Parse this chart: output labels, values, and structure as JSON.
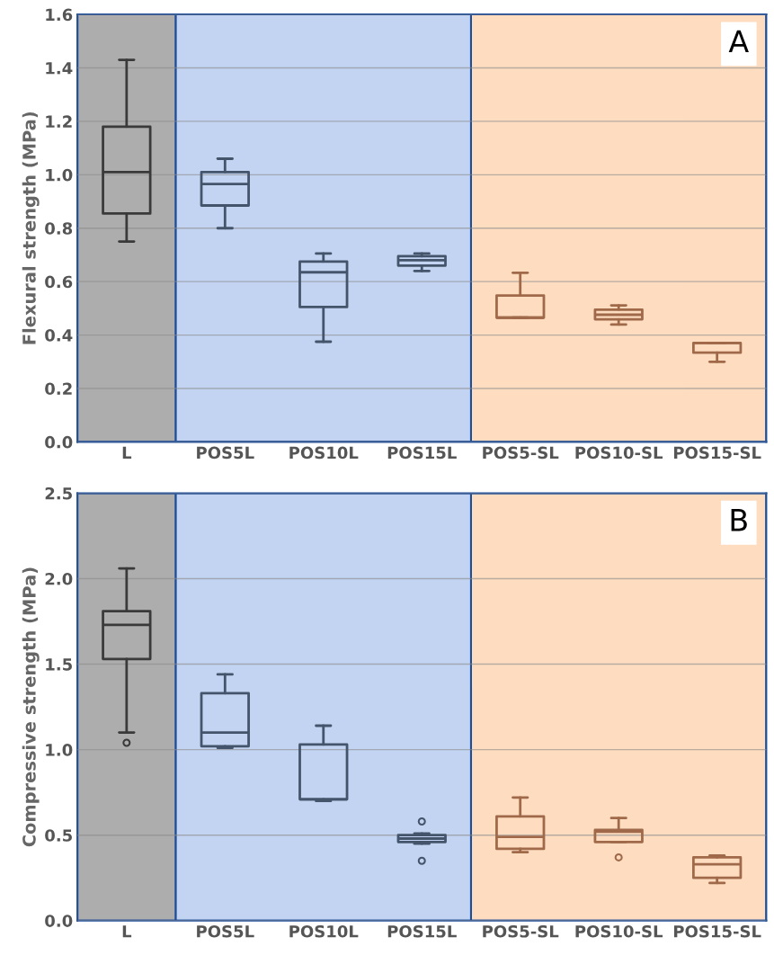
{
  "chart_data": [
    {
      "type": "box",
      "ylabel": "Flexural strength (MPa)",
      "annotations": [
        "A"
      ],
      "categories": [
        "L",
        "POS5L",
        "POS10L",
        "POS15L",
        "POS5-SL",
        "POS10-SL",
        "POS15-SL"
      ],
      "colors": [
        "#3a3a3a",
        "#44546a",
        "#44546a",
        "#44546a",
        "#a0694a",
        "#a0694a",
        "#a0694a"
      ],
      "boxes": [
        {
          "low": 0.75,
          "q1": 0.855,
          "median": 1.01,
          "q3": 1.18,
          "high": 1.43
        },
        {
          "low": 0.8,
          "q1": 0.885,
          "median": 0.965,
          "q3": 1.01,
          "high": 1.06
        },
        {
          "low": 0.375,
          "q1": 0.505,
          "median": 0.635,
          "q3": 0.675,
          "high": 0.705
        },
        {
          "low": 0.64,
          "q1": 0.66,
          "median": 0.68,
          "q3": 0.695,
          "high": 0.705
        },
        {
          "low": 0.465,
          "q1": 0.465,
          "median": 0.465,
          "q3": 0.548,
          "high": 0.633
        },
        {
          "low": 0.439,
          "q1": 0.459,
          "median": 0.476,
          "q3": 0.495,
          "high": 0.511
        },
        {
          "low": 0.3,
          "q1": 0.334,
          "median": 0.37,
          "q3": 0.37,
          "high": 0.37
        }
      ],
      "bands": [
        {
          "axis": "x",
          "from": "L",
          "to": "L",
          "color": "#adadad"
        },
        {
          "axis": "x",
          "from": "POS5L",
          "to": "POS15L",
          "color": "#c2d4f2"
        },
        {
          "axis": "x",
          "from": "POS5-SL",
          "to": "POS15-SL",
          "color": "#fddcc0"
        }
      ],
      "ylim": [
        0,
        1.6
      ],
      "yticks": [
        {
          "value": 0,
          "label": "0.0"
        },
        {
          "value": 0.2,
          "label": "0.2"
        },
        {
          "value": 0.4,
          "label": "0.4"
        },
        {
          "value": 0.6,
          "label": "0.6"
        },
        {
          "value": 0.8,
          "label": "0.8"
        },
        {
          "value": 1.0,
          "label": "1.0"
        },
        {
          "value": 1.2,
          "label": "1.2"
        },
        {
          "value": 1.4,
          "label": "1.4"
        },
        {
          "value": 1.6,
          "label": "1.6"
        }
      ],
      "grid": "y"
    },
    {
      "type": "box",
      "ylabel": "Compressive strength (MPa)",
      "annotations": [
        "B"
      ],
      "categories": [
        "L",
        "POS5L",
        "POS10L",
        "POS15L",
        "POS5-SL",
        "POS10-SL",
        "POS15-SL"
      ],
      "colors": [
        "#3a3a3a",
        "#44546a",
        "#44546a",
        "#44546a",
        "#a0694a",
        "#a0694a",
        "#a0694a"
      ],
      "boxes": [
        {
          "low": 1.1,
          "q1": 1.53,
          "median": 1.73,
          "q3": 1.81,
          "high": 2.06,
          "outliers": [
            1.04
          ]
        },
        {
          "low": 1.01,
          "q1": 1.02,
          "median": 1.1,
          "q3": 1.33,
          "high": 1.44
        },
        {
          "low": 0.7,
          "q1": 0.71,
          "median": 0.71,
          "q3": 1.03,
          "high": 1.14
        },
        {
          "low": 0.45,
          "q1": 0.46,
          "median": 0.48,
          "q3": 0.5,
          "high": 0.51,
          "outliers": [
            0.58,
            0.35
          ]
        },
        {
          "low": 0.4,
          "q1": 0.42,
          "median": 0.49,
          "q3": 0.61,
          "high": 0.72
        },
        {
          "low": 0.46,
          "q1": 0.46,
          "median": 0.52,
          "q3": 0.53,
          "high": 0.6,
          "outliers": [
            0.37
          ]
        },
        {
          "low": 0.22,
          "q1": 0.25,
          "median": 0.33,
          "q3": 0.37,
          "high": 0.38
        }
      ],
      "bands": [
        {
          "axis": "x",
          "from": "L",
          "to": "L",
          "color": "#adadad"
        },
        {
          "axis": "x",
          "from": "POS5L",
          "to": "POS15L",
          "color": "#c2d4f2"
        },
        {
          "axis": "x",
          "from": "POS5-SL",
          "to": "POS15-SL",
          "color": "#fddcc0"
        }
      ],
      "ylim": [
        0,
        2.5
      ],
      "yticks": [
        {
          "value": 0,
          "label": "0.0"
        },
        {
          "value": 0.5,
          "label": "0.5"
        },
        {
          "value": 1.0,
          "label": "1.0"
        },
        {
          "value": 1.5,
          "label": "1.5"
        },
        {
          "value": 2.0,
          "label": "2.0"
        },
        {
          "value": 2.5,
          "label": "2.5"
        }
      ],
      "grid": "y"
    }
  ]
}
